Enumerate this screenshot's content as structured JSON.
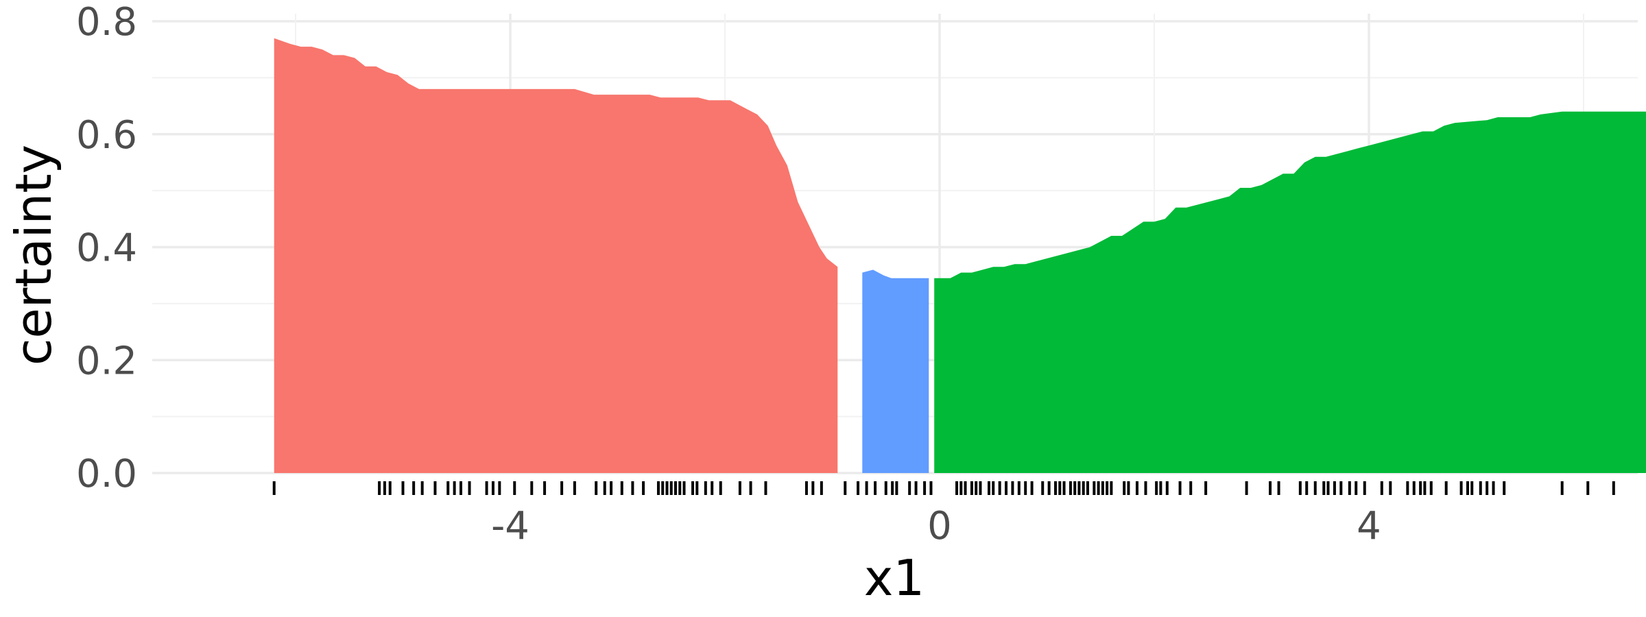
{
  "chart_data": {
    "type": "area",
    "title": "",
    "xlabel": "x1",
    "ylabel": "certainty",
    "xlim": [
      -6.8,
      6.15
    ],
    "ylim": [
      0,
      0.8
    ],
    "x_ticks": [
      -4,
      0,
      4
    ],
    "x_tick_labels": [
      "-4",
      "0",
      "4"
    ],
    "y_ticks": [
      0,
      0.2,
      0.4,
      0.6,
      0.8
    ],
    "y_tick_labels": [
      "0.0",
      "0.2",
      "0.4",
      "0.6",
      "0.8"
    ],
    "grid": true,
    "legend": "none",
    "series": [
      {
        "color": "#F8766D",
        "points": [
          [
            -6.2,
            0.77
          ],
          [
            -6.05,
            0.76
          ],
          [
            -5.95,
            0.755
          ],
          [
            -5.85,
            0.755
          ],
          [
            -5.75,
            0.75
          ],
          [
            -5.65,
            0.74
          ],
          [
            -5.55,
            0.74
          ],
          [
            -5.45,
            0.735
          ],
          [
            -5.35,
            0.72
          ],
          [
            -5.25,
            0.72
          ],
          [
            -5.15,
            0.71
          ],
          [
            -5.05,
            0.705
          ],
          [
            -4.95,
            0.69
          ],
          [
            -4.85,
            0.68
          ],
          [
            -4.0,
            0.68
          ],
          [
            -3.4,
            0.68
          ],
          [
            -3.22,
            0.67
          ],
          [
            -2.7,
            0.67
          ],
          [
            -2.6,
            0.665
          ],
          [
            -2.55,
            0.665
          ],
          [
            -2.35,
            0.665
          ],
          [
            -2.25,
            0.665
          ],
          [
            -2.15,
            0.66
          ],
          [
            -1.95,
            0.66
          ],
          [
            -1.8,
            0.645
          ],
          [
            -1.7,
            0.635
          ],
          [
            -1.6,
            0.615
          ],
          [
            -1.52,
            0.58
          ],
          [
            -1.42,
            0.545
          ],
          [
            -1.32,
            0.48
          ],
          [
            -1.12,
            0.4
          ],
          [
            -1.05,
            0.38
          ],
          [
            -0.95,
            0.365
          ],
          [
            -0.95,
            0.0
          ],
          [
            -6.2,
            0.0
          ]
        ]
      },
      {
        "color": "#619CFF",
        "points": [
          [
            -0.72,
            0.355
          ],
          [
            -0.62,
            0.36
          ],
          [
            -0.52,
            0.35
          ],
          [
            -0.45,
            0.345
          ],
          [
            -0.1,
            0.345
          ],
          [
            -0.1,
            0.0
          ],
          [
            -0.72,
            0.0
          ]
        ]
      },
      {
        "color": "#00BA38",
        "points": [
          [
            -0.05,
            0.345
          ],
          [
            0.1,
            0.345
          ],
          [
            0.2,
            0.355
          ],
          [
            0.3,
            0.355
          ],
          [
            0.4,
            0.36
          ],
          [
            0.5,
            0.365
          ],
          [
            0.6,
            0.365
          ],
          [
            0.7,
            0.37
          ],
          [
            0.8,
            0.37
          ],
          [
            1.2,
            0.39
          ],
          [
            1.4,
            0.4
          ],
          [
            1.5,
            0.41
          ],
          [
            1.6,
            0.42
          ],
          [
            1.7,
            0.42
          ],
          [
            1.9,
            0.445
          ],
          [
            2.0,
            0.445
          ],
          [
            2.1,
            0.45
          ],
          [
            2.2,
            0.47
          ],
          [
            2.3,
            0.47
          ],
          [
            2.7,
            0.49
          ],
          [
            2.8,
            0.505
          ],
          [
            2.9,
            0.505
          ],
          [
            3.0,
            0.51
          ],
          [
            3.1,
            0.52
          ],
          [
            3.2,
            0.53
          ],
          [
            3.3,
            0.53
          ],
          [
            3.4,
            0.55
          ],
          [
            3.5,
            0.56
          ],
          [
            3.6,
            0.56
          ],
          [
            3.8,
            0.57
          ],
          [
            3.9,
            0.575
          ],
          [
            4.0,
            0.58
          ],
          [
            4.1,
            0.585
          ],
          [
            4.4,
            0.6
          ],
          [
            4.5,
            0.605
          ],
          [
            4.6,
            0.605
          ],
          [
            4.7,
            0.615
          ],
          [
            4.8,
            0.62
          ],
          [
            5.1,
            0.625
          ],
          [
            5.2,
            0.63
          ],
          [
            5.5,
            0.63
          ],
          [
            5.6,
            0.635
          ],
          [
            5.8,
            0.64
          ],
          [
            6.7,
            0.64
          ],
          [
            7.0,
            0.645
          ],
          [
            7.2,
            0.645
          ],
          [
            7.3,
            0.648
          ],
          [
            7.3,
            0.0
          ],
          [
            -0.05,
            0.0
          ]
        ]
      }
    ],
    "rug_x": [
      -6.2,
      -5.22,
      -5.17,
      -5.12,
      -5.0,
      -4.9,
      -4.82,
      -4.7,
      -4.58,
      -4.52,
      -4.46,
      -4.38,
      -4.22,
      -4.16,
      -4.1,
      -3.96,
      -3.8,
      -3.68,
      -3.52,
      -3.4,
      -3.2,
      -3.12,
      -3.06,
      -2.96,
      -2.86,
      -2.76,
      -2.62,
      -2.58,
      -2.54,
      -2.5,
      -2.46,
      -2.42,
      -2.38,
      -2.3,
      -2.26,
      -2.18,
      -2.12,
      -2.04,
      -1.86,
      -1.76,
      -1.62,
      -1.24,
      -1.18,
      -1.1,
      -0.88,
      -0.76,
      -0.68,
      -0.6,
      -0.5,
      -0.44,
      -0.4,
      -0.28,
      -0.22,
      -0.14,
      -0.08,
      0.16,
      0.2,
      0.24,
      0.3,
      0.34,
      0.38,
      0.46,
      0.5,
      0.56,
      0.62,
      0.68,
      0.74,
      0.8,
      0.86,
      0.96,
      1.02,
      1.08,
      1.12,
      1.16,
      1.22,
      1.26,
      1.3,
      1.34,
      1.38,
      1.44,
      1.48,
      1.52,
      1.56,
      1.6,
      1.72,
      1.76,
      1.84,
      1.92,
      2.02,
      2.06,
      2.12,
      2.24,
      2.34,
      2.48,
      2.86,
      3.08,
      3.16,
      3.36,
      3.42,
      3.5,
      3.58,
      3.62,
      3.68,
      3.74,
      3.82,
      3.88,
      3.96,
      4.12,
      4.2,
      4.36,
      4.42,
      4.48,
      4.52,
      4.58,
      4.72,
      4.86,
      4.92,
      4.96,
      5.04,
      5.1,
      5.16,
      5.26,
      5.8,
      6.04,
      6.28
    ]
  }
}
